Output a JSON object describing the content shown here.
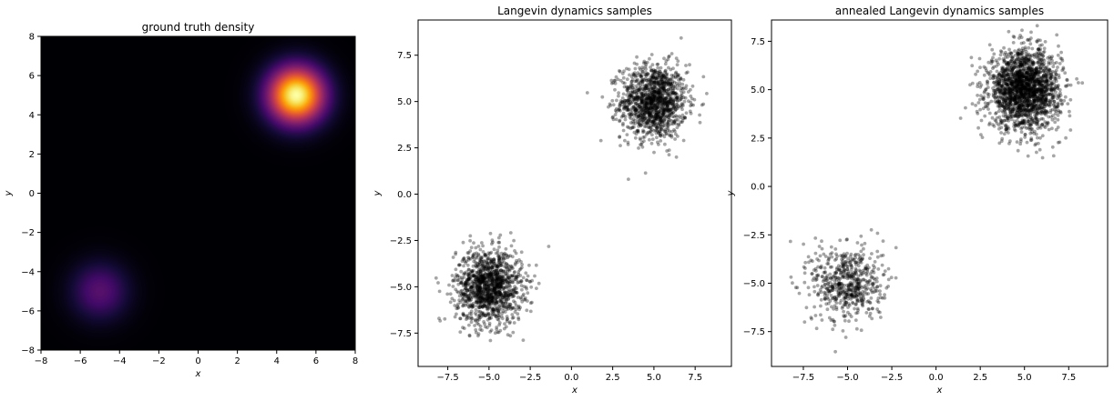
{
  "chart_data": [
    {
      "type": "heatmap",
      "title": "ground truth density",
      "xlabel": "x",
      "ylabel": "y",
      "xlim": [
        -8,
        8
      ],
      "ylim": [
        -8,
        8
      ],
      "xticks": [
        -8,
        -6,
        -4,
        -2,
        0,
        2,
        4,
        6,
        8
      ],
      "yticks": [
        -8,
        -6,
        -4,
        -2,
        0,
        2,
        4,
        6,
        8
      ],
      "colormap": "inferno",
      "components": [
        {
          "mean": [
            5,
            5
          ],
          "std": 1,
          "weight": 0.8
        },
        {
          "mean": [
            -5,
            -5
          ],
          "std": 1,
          "weight": 0.2
        }
      ]
    },
    {
      "type": "scatter",
      "title": "Langevin dynamics samples",
      "xlabel": "x",
      "ylabel": "y",
      "xlim": [
        -9.3,
        9.7
      ],
      "ylim": [
        -9.3,
        9.4
      ],
      "xticks": [
        -7.5,
        -5.0,
        -2.5,
        0.0,
        2.5,
        5.0,
        7.5
      ],
      "yticks": [
        -7.5,
        -5.0,
        -2.5,
        0.0,
        2.5,
        5.0,
        7.5
      ],
      "marker_color": "#000000",
      "marker_alpha": 0.35,
      "clusters": [
        {
          "center": [
            5,
            5
          ],
          "std": 1,
          "count": 1300
        },
        {
          "center": [
            -5,
            -5
          ],
          "std": 1,
          "count": 1300
        }
      ]
    },
    {
      "type": "scatter",
      "title": "annealed Langevin dynamics samples",
      "xlabel": "x",
      "ylabel": "y",
      "xlim": [
        -9.3,
        9.7
      ],
      "ylim": [
        -9.3,
        8.6
      ],
      "xticks": [
        -7.5,
        -5.0,
        -2.5,
        0.0,
        2.5,
        5.0,
        7.5
      ],
      "yticks": [
        -7.5,
        -5.0,
        -2.5,
        0.0,
        2.5,
        5.0,
        7.5
      ],
      "marker_color": "#000000",
      "marker_alpha": 0.35,
      "clusters": [
        {
          "center": [
            5,
            5
          ],
          "std": 1,
          "count": 2000
        },
        {
          "center": [
            -5,
            -5
          ],
          "std": 1,
          "count": 600
        }
      ]
    }
  ]
}
